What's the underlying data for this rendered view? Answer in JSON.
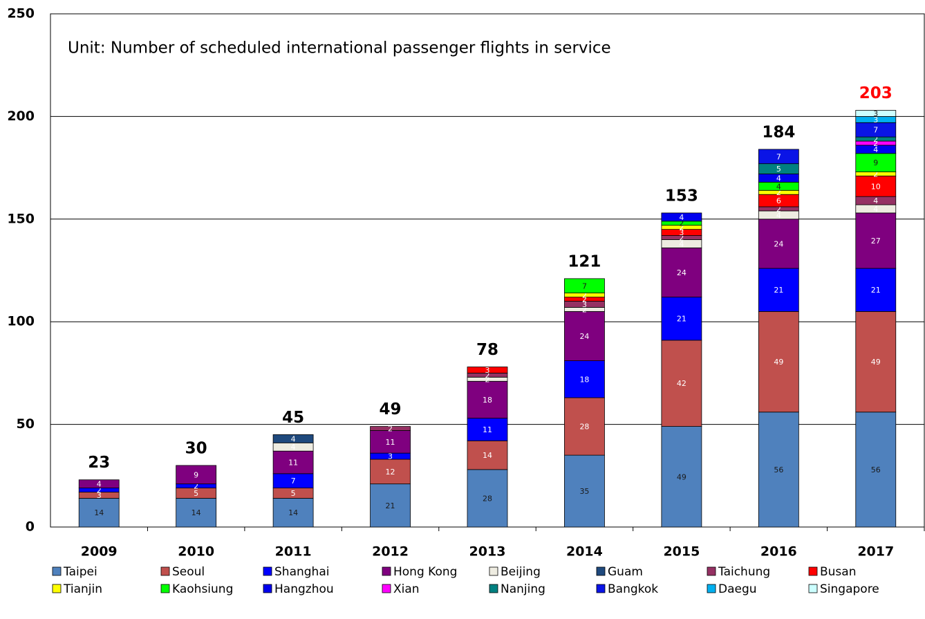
{
  "chart_data": {
    "type": "stacked_bar",
    "annotation": "Unit: Number of scheduled international passenger flights in service",
    "categories": [
      "2009",
      "2010",
      "2011",
      "2012",
      "2013",
      "2014",
      "2015",
      "2016",
      "2017"
    ],
    "ylim": [
      0,
      250
    ],
    "yticks": [
      0,
      50,
      100,
      150,
      200,
      250
    ],
    "grid": true,
    "totals": [
      23,
      30,
      45,
      49,
      78,
      121,
      153,
      184,
      203
    ],
    "total_colors": [
      "#000000",
      "#000000",
      "#000000",
      "#000000",
      "#000000",
      "#000000",
      "#000000",
      "#000000",
      "#ff0000"
    ],
    "series": [
      {
        "name": "Taipei",
        "color": "#4f81bd",
        "label_color": "#1a1a1a",
        "values": [
          14,
          14,
          14,
          21,
          28,
          35,
          49,
          56,
          56
        ]
      },
      {
        "name": "Seoul",
        "color": "#c0504d",
        "label_color": "#ffffff",
        "values": [
          3,
          5,
          5,
          12,
          14,
          28,
          42,
          49,
          49
        ]
      },
      {
        "name": "Shanghai",
        "color": "#0000ff",
        "label_color": "#ffffff",
        "values": [
          2,
          2,
          7,
          3,
          11,
          18,
          21,
          21,
          21
        ]
      },
      {
        "name": "Hong Kong",
        "color": "#7f007f",
        "label_color": "#ffffff",
        "values": [
          4,
          9,
          11,
          11,
          18,
          24,
          24,
          24,
          27
        ]
      },
      {
        "name": "Beijing",
        "color": "#eeece1",
        "label_color": "#ffffff",
        "values": [
          null,
          null,
          4,
          null,
          2,
          2,
          4,
          4,
          4
        ]
      },
      {
        "name": "Guam",
        "color": "#1f497d",
        "label_color": "#ffffff",
        "values": [
          null,
          null,
          4,
          null,
          null,
          null,
          null,
          null,
          null
        ]
      },
      {
        "name": "Taichung",
        "color": "#953163",
        "label_color": "#ffffff",
        "values": [
          null,
          null,
          null,
          2,
          2,
          3,
          2,
          2,
          4
        ]
      },
      {
        "name": "Busan",
        "color": "#ff0000",
        "label_color": "#ffffff",
        "values": [
          null,
          null,
          null,
          null,
          3,
          2,
          3,
          6,
          10
        ]
      },
      {
        "name": "Tianjin",
        "color": "#ffff00",
        "label_color": "#ffffff",
        "values": [
          null,
          null,
          null,
          null,
          null,
          2,
          2,
          2,
          2
        ]
      },
      {
        "name": "Kaohsiung",
        "color": "#00ff00",
        "label_color": "#1a1a1a",
        "values": [
          null,
          null,
          null,
          null,
          null,
          7,
          2,
          4,
          9
        ]
      },
      {
        "name": "Hangzhou",
        "color": "#0000ee",
        "label_color": "#ffffff",
        "values": [
          null,
          null,
          null,
          null,
          null,
          null,
          4,
          4,
          4
        ]
      },
      {
        "name": "Xian",
        "color": "#ff00ff",
        "label_color": "#ffffff",
        "values": [
          null,
          null,
          null,
          null,
          null,
          null,
          null,
          null,
          2
        ]
      },
      {
        "name": "Nanjing",
        "color": "#008080",
        "label_color": "#ffffff",
        "values": [
          null,
          null,
          null,
          null,
          null,
          null,
          null,
          5,
          2
        ]
      },
      {
        "name": "Bangkok",
        "color": "#0a14e6",
        "label_color": "#ffffff",
        "values": [
          null,
          null,
          null,
          null,
          null,
          null,
          null,
          7,
          7
        ]
      },
      {
        "name": "Daegu",
        "color": "#00b0f0",
        "label_color": "#ffffff",
        "values": [
          null,
          null,
          null,
          null,
          null,
          null,
          null,
          null,
          3
        ]
      },
      {
        "name": "Singapore",
        "color": "#ccffff",
        "label_color": "#1a1a1a",
        "values": [
          null,
          null,
          null,
          null,
          null,
          null,
          null,
          null,
          3
        ]
      }
    ]
  }
}
